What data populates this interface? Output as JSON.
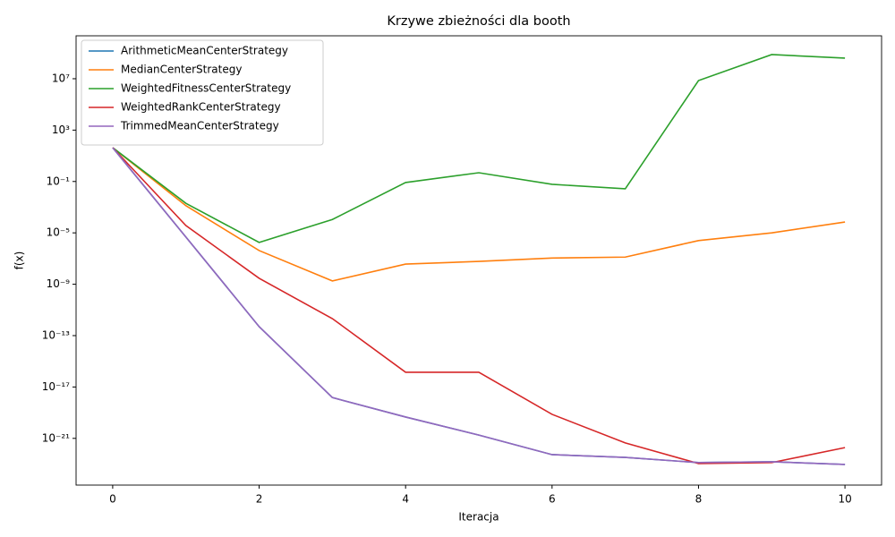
{
  "chart_data": {
    "type": "line",
    "title": "Krzywe zbieżności dla booth",
    "xlabel": "Iteracja",
    "ylabel": "f(x)",
    "x": [
      0,
      1,
      2,
      3,
      4,
      5,
      6,
      7,
      8,
      9,
      10
    ],
    "xlim": [
      -0.5,
      10.5
    ],
    "xticks": [
      0,
      2,
      4,
      6,
      8,
      10
    ],
    "ylog": true,
    "ylim": [
      2.3e-25,
      22000000000.0
    ],
    "yticks": [
      {
        "value": 1e-21,
        "label": "10⁻²¹"
      },
      {
        "value": 1e-17,
        "label": "10⁻¹⁷"
      },
      {
        "value": 1e-13,
        "label": "10⁻¹³"
      },
      {
        "value": 1e-09,
        "label": "10⁻⁹"
      },
      {
        "value": 1e-05,
        "label": "10⁻⁵"
      },
      {
        "value": 0.1,
        "label": "10⁻¹"
      },
      {
        "value": 1000,
        "label": "10³"
      },
      {
        "value": 10000000,
        "label": "10⁷"
      }
    ],
    "legend": "upper left",
    "series": [
      {
        "name": "ArithmeticMeanCenterStrategy",
        "color": "#1f77b4",
        "values": [
          43,
          4.7e-06,
          5e-13,
          1.5e-18,
          4.6e-20,
          1.8e-21,
          5.4e-23,
          3.3e-23,
          1.3e-23,
          1.5e-23,
          9.3e-24
        ]
      },
      {
        "name": "MedianCenterStrategy",
        "color": "#ff7f0e",
        "values": [
          43,
          0.0013,
          4.2e-07,
          1.8e-09,
          3.7e-08,
          6e-08,
          1.1e-07,
          1.3e-07,
          2.5e-06,
          1e-05,
          7e-05
        ]
      },
      {
        "name": "WeightedFitnessCenterStrategy",
        "color": "#2ca02c",
        "values": [
          43,
          0.002,
          1.8e-06,
          0.00011,
          0.083,
          0.48,
          0.06,
          0.027,
          7200000.0,
          760000000.0,
          400000000.0
        ]
      },
      {
        "name": "WeightedRankCenterStrategy",
        "color": "#d62728",
        "values": [
          43,
          3.7e-05,
          2.9e-09,
          2.1e-12,
          1.4e-16,
          1.4e-16,
          7.4e-20,
          4.4e-22,
          1.1e-23,
          1.3e-23,
          1.9e-22
        ]
      },
      {
        "name": "TrimmedMeanCenterStrategy",
        "color": "#9467bd",
        "values": [
          43,
          4.7e-06,
          5e-13,
          1.5e-18,
          4.6e-20,
          1.8e-21,
          5.4e-23,
          3.3e-23,
          1.3e-23,
          1.5e-23,
          9.3e-24
        ]
      }
    ]
  }
}
